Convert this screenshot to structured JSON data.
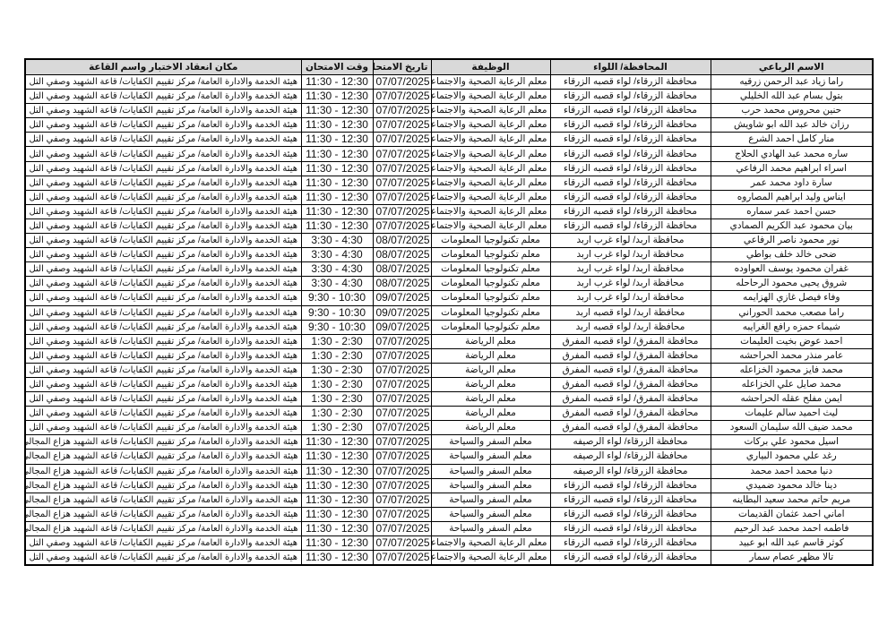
{
  "headers": {
    "name": "الاسم الرباعي",
    "province": "المحافظة/ اللواء",
    "job": "الوظيفة",
    "date": "تاريخ الامتحان",
    "time": "وقت الامتحان",
    "place": "مكان انعقاد الاختبار واسم القاعة"
  },
  "rows": [
    {
      "name": "راما زياد عبد الرحمن زرقيه",
      "province": "محافظة الزرقاء/ لواء قصبه الزرقاء",
      "job": "معلم الرعاية الصحية والاجتماعية",
      "date": "07/07/2025",
      "time": "11:30 - 12:30",
      "place": "هيئة الخدمة والادارة العامة/ مركز تقييم الكفايات/ قاعة الشهيد وصفي التل"
    },
    {
      "name": "بتول بسام عبد الله الخليلي",
      "province": "محافظة الزرقاء/ لواء قصبه الزرقاء",
      "job": "معلم الرعاية الصحية والاجتماعية",
      "date": "07/07/2025",
      "time": "11:30 - 12:30",
      "place": "هيئة الخدمة والادارة العامة/ مركز تقييم الكفايات/ قاعة الشهيد وصفي التل"
    },
    {
      "name": "حنين محروس محمد حرب",
      "province": "محافظة الزرقاء/ لواء قصبه الزرقاء",
      "job": "معلم الرعاية الصحية والاجتماعية",
      "date": "07/07/2025",
      "time": "11:30 - 12:30",
      "place": "هيئة الخدمة والادارة العامة/ مركز تقييم الكفايات/ قاعة الشهيد وصفي التل"
    },
    {
      "name": "رزان خالد عبد الله ابو شاويش",
      "province": "محافظة الزرقاء/ لواء قصبه الزرقاء",
      "job": "معلم الرعاية الصحية والاجتماعية",
      "date": "07/07/2025",
      "time": "11:30 - 12:30",
      "place": "هيئة الخدمة والادارة العامة/ مركز تقييم الكفايات/ قاعة الشهيد وصفي التل"
    },
    {
      "name": "منار كامل احمد الشرع",
      "province": "محافظة الزرقاء/ لواء قصبه الزرقاء",
      "job": "معلم الرعاية الصحية والاجتماعية",
      "date": "07/07/2025",
      "time": "11:30 - 12:30",
      "place": "هيئة الخدمة والادارة العامة/ مركز تقييم الكفايات/ قاعة الشهيد وصفي التل"
    },
    {
      "name": "ساره محمد عبد الهادي الحلاج",
      "province": "محافظة الزرقاء/ لواء قصبه الزرقاء",
      "job": "معلم الرعاية الصحية والاجتماعية",
      "date": "07/07/2025",
      "time": "11:30 - 12:30",
      "place": "هيئة الخدمة والادارة العامة/ مركز تقييم الكفايات/ قاعة الشهيد وصفي التل"
    },
    {
      "name": "اسراء ابراهيم محمد الرفاعي",
      "province": "محافظة الزرقاء/ لواء قصبه الزرقاء",
      "job": "معلم الرعاية الصحية والاجتماعية",
      "date": "07/07/2025",
      "time": "11:30 - 12:30",
      "place": "هيئة الخدمة والادارة العامة/ مركز تقييم الكفايات/ قاعة الشهيد وصفي التل"
    },
    {
      "name": "سارة داود محمد عمر",
      "province": "محافظة الزرقاء/ لواء قصبه الزرقاء",
      "job": "معلم الرعاية الصحية والاجتماعية",
      "date": "07/07/2025",
      "time": "11:30 - 12:30",
      "place": "هيئة الخدمة والادارة العامة/ مركز تقييم الكفايات/ قاعة الشهيد وصفي التل"
    },
    {
      "name": "ايناس وليد ابراهيم المصاروه",
      "province": "محافظة الزرقاء/ لواء قصبه الزرقاء",
      "job": "معلم الرعاية الصحية والاجتماعية",
      "date": "07/07/2025",
      "time": "11:30 - 12:30",
      "place": "هيئة الخدمة والادارة العامة/ مركز تقييم الكفايات/ قاعة الشهيد وصفي التل"
    },
    {
      "name": "حسن احمد عمر سماره",
      "province": "محافظة الزرقاء/ لواء قصبه الزرقاء",
      "job": "معلم الرعاية الصحية والاجتماعية",
      "date": "07/07/2025",
      "time": "11:30 - 12:30",
      "place": "هيئة الخدمة والادارة العامة/ مركز تقييم الكفايات/ قاعة الشهيد وصفي التل"
    },
    {
      "name": "بيان محمود عبد الكريم الصمادي",
      "province": "محافظة الزرقاء/ لواء قصبه الزرقاء",
      "job": "معلم الرعاية الصحية والاجتماعية",
      "date": "07/07/2025",
      "time": "11:30 - 12:30",
      "place": "هيئة الخدمة والادارة العامة/ مركز تقييم الكفايات/ قاعة الشهيد وصفي التل"
    },
    {
      "name": "نور محمود ناصر الرفاعي",
      "province": "محافظة اربد/ لواء غرب اربد",
      "job": "معلم تكنولوجيا المعلومات",
      "date": "08/07/2025",
      "time": "3:30 - 4:30",
      "place": "هيئة الخدمة والادارة العامة/ مركز تقييم الكفايات/ قاعة الشهيد وصفي التل"
    },
    {
      "name": "ضحى خالد خلف بواطي",
      "province": "محافظة اربد/ لواء غرب اربد",
      "job": "معلم تكنولوجيا المعلومات",
      "date": "08/07/2025",
      "time": "3:30 - 4:30",
      "place": "هيئة الخدمة والادارة العامة/ مركز تقييم الكفايات/ قاعة الشهيد وصفي التل"
    },
    {
      "name": "غفران محمود يوسف العواوده",
      "province": "محافظة اربد/ لواء غرب اربد",
      "job": "معلم تكنولوجيا المعلومات",
      "date": "08/07/2025",
      "time": "3:30 - 4:30",
      "place": "هيئة الخدمة والادارة العامة/ مركز تقييم الكفايات/ قاعة الشهيد وصفي التل"
    },
    {
      "name": "شروق يحيى محمود الرحاحله",
      "province": "محافظة اربد/ لواء غرب اربد",
      "job": "معلم تكنولوجيا المعلومات",
      "date": "08/07/2025",
      "time": "3:30 - 4:30",
      "place": "هيئة الخدمة والادارة العامة/ مركز تقييم الكفايات/ قاعة الشهيد وصفي التل"
    },
    {
      "name": "وفاء فيصل غازي الهزايمه",
      "province": "محافظة اربد/ لواء غرب اربد",
      "job": "معلم تكنولوجيا المعلومات",
      "date": "09/07/2025",
      "time": "9:30 - 10:30",
      "place": "هيئة الخدمة والادارة العامة/ مركز تقييم الكفايات/ قاعة الشهيد وصفي التل"
    },
    {
      "name": "راما مصعب محمد الحوراني",
      "province": "محافظة اربد/ لواء قصبه اربد",
      "job": "معلم تكنولوجيا المعلومات",
      "date": "09/07/2025",
      "time": "9:30 - 10:30",
      "place": "هيئة الخدمة والادارة العامة/ مركز تقييم الكفايات/ قاعة الشهيد وصفي التل"
    },
    {
      "name": "شيماء حمزه رافع الغرايبه",
      "province": "محافظة اربد/ لواء قصبه اربد",
      "job": "معلم تكنولوجيا المعلومات",
      "date": "09/07/2025",
      "time": "9:30 - 10:30",
      "place": "هيئة الخدمة والادارة العامة/ مركز تقييم الكفايات/ قاعة الشهيد وصفي التل"
    },
    {
      "name": "احمد عوض بخيت العليمات",
      "province": "محافظة المفرق/ لواء قصبه المفرق",
      "job": "معلم الرياضة",
      "date": "07/07/2025",
      "time": "1:30 - 2:30",
      "place": "هيئة الخدمة والادارة العامة/ مركز تقييم الكفايات/ قاعة الشهيد وصفي التل"
    },
    {
      "name": "عامر منذر محمد الحراحشه",
      "province": "محافظة المفرق/ لواء قصبه المفرق",
      "job": "معلم الرياضة",
      "date": "07/07/2025",
      "time": "1:30 - 2:30",
      "place": "هيئة الخدمة والادارة العامة/ مركز تقييم الكفايات/ قاعة الشهيد وصفي التل"
    },
    {
      "name": "محمد فايز محمود الخزاعله",
      "province": "محافظة المفرق/ لواء قصبه المفرق",
      "job": "معلم الرياضة",
      "date": "07/07/2025",
      "time": "1:30 - 2:30",
      "place": "هيئة الخدمة والادارة العامة/ مركز تقييم الكفايات/ قاعة الشهيد وصفي التل"
    },
    {
      "name": "محمد صايل علي الخزاعله",
      "province": "محافظة المفرق/ لواء قصبه المفرق",
      "job": "معلم الرياضة",
      "date": "07/07/2025",
      "time": "1:30 - 2:30",
      "place": "هيئة الخدمة والادارة العامة/ مركز تقييم الكفايات/ قاعة الشهيد وصفي التل"
    },
    {
      "name": "ايمن مفلح عقله الحراحشه",
      "province": "محافظة المفرق/ لواء قصبه المفرق",
      "job": "معلم الرياضة",
      "date": "07/07/2025",
      "time": "1:30 - 2:30",
      "place": "هيئة الخدمة والادارة العامة/ مركز تقييم الكفايات/ قاعة الشهيد وصفي التل"
    },
    {
      "name": "ليث احميد سالم عليمات",
      "province": "محافظة المفرق/ لواء قصبه المفرق",
      "job": "معلم الرياضة",
      "date": "07/07/2025",
      "time": "1:30 - 2:30",
      "place": "هيئة الخدمة والادارة العامة/ مركز تقييم الكفايات/ قاعة الشهيد وصفي التل"
    },
    {
      "name": "محمد ضيف الله سليمان السعود",
      "province": "محافظة المفرق/ لواء قصبه المفرق",
      "job": "معلم الرياضة",
      "date": "07/07/2025",
      "time": "1:30 - 2:30",
      "place": "هيئة الخدمة والادارة العامة/ مركز تقييم الكفايات/ قاعة الشهيد وصفي التل"
    },
    {
      "name": "اسيل محمود علي بركات",
      "province": "محافظة الزرقاء/ لواء الرصيفه",
      "job": "معلم السفر والسياحة",
      "date": "07/07/2025",
      "time": "11:30 - 12:30",
      "place": "هيئة الخدمة والادارة العامة/ مركز تقييم الكفايات/ قاعة الشهيد هزاع المجالي"
    },
    {
      "name": "رغد علي محمود البياري",
      "province": "محافظة الزرقاء/ لواء الرصيفه",
      "job": "معلم السفر والسياحة",
      "date": "07/07/2025",
      "time": "11:30 - 12:30",
      "place": "هيئة الخدمة والادارة العامة/ مركز تقييم الكفايات/ قاعة الشهيد هزاع المجالي"
    },
    {
      "name": "دنيا محمد احمد محمد",
      "province": "محافظة الزرقاء/ لواء الرصيفه",
      "job": "معلم السفر والسياحة",
      "date": "07/07/2025",
      "time": "11:30 - 12:30",
      "place": "هيئة الخدمة والادارة العامة/ مركز تقييم الكفايات/ قاعة الشهيد هزاع المجالي"
    },
    {
      "name": "دينا خالد محمود ضميدي",
      "province": "محافظة الزرقاء/ لواء قصبه الزرقاء",
      "job": "معلم السفر والسياحة",
      "date": "07/07/2025",
      "time": "11:30 - 12:30",
      "place": "هيئة الخدمة والادارة العامة/ مركز تقييم الكفايات/ قاعة الشهيد هزاع المجالي"
    },
    {
      "name": "مريم حاتم محمد سعيد البطاينه",
      "province": "محافظة الزرقاء/ لواء قصبه الزرقاء",
      "job": "معلم السفر والسياحة",
      "date": "07/07/2025",
      "time": "11:30 - 12:30",
      "place": "هيئة الخدمة والادارة العامة/ مركز تقييم الكفايات/ قاعة الشهيد هزاع المجالي"
    },
    {
      "name": "اماني احمد عثمان القديمات",
      "province": "محافظة الزرقاء/ لواء قصبه الزرقاء",
      "job": "معلم السفر والسياحة",
      "date": "07/07/2025",
      "time": "11:30 - 12:30",
      "place": "هيئة الخدمة والادارة العامة/ مركز تقييم الكفايات/ قاعة الشهيد هزاع المجالي"
    },
    {
      "name": "فاطمه احمد محمد عبد الرحيم",
      "province": "محافظة الزرقاء/ لواء قصبه الزرقاء",
      "job": "معلم السفر والسياحة",
      "date": "07/07/2025",
      "time": "11:30 - 12:30",
      "place": "هيئة الخدمة والادارة العامة/ مركز تقييم الكفايات/ قاعة الشهيد هزاع المجالي"
    },
    {
      "name": "كوثر قاسم عبد الله ابو عبيد",
      "province": "محافظة الزرقاء/ لواء قصبه الزرقاء",
      "job": "معلم الرعاية الصحية والاجتماعية",
      "date": "07/07/2025",
      "time": "11:30 - 12:30",
      "place": "هيئة الخدمة والادارة العامة/ مركز تقييم الكفايات/ قاعة الشهيد وصفي التل"
    },
    {
      "name": "تالا مظهر عصام سمار",
      "province": "محافظة الزرقاء/ لواء قصبه الزرقاء",
      "job": "معلم الرعاية الصحية والاجتماعية",
      "date": "07/07/2025",
      "time": "11:30 - 12:30",
      "place": "هيئة الخدمة والادارة العامة/ مركز تقييم الكفايات/ قاعة الشهيد وصفي التل"
    }
  ]
}
